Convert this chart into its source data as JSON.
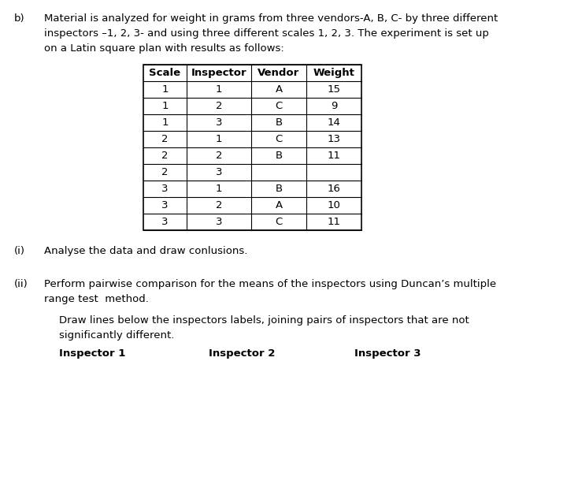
{
  "title_prefix": "b)",
  "title_lines": [
    "Material is analyzed for weight in grams from three vendors-A, B, C- by three different",
    "inspectors –1, 2, 3- and using three different scales 1, 2, 3. The experiment is set up",
    "on a Latin square plan with results as follows:"
  ],
  "table_headers": [
    "Scale",
    "Inspector",
    "Vendor",
    "Weight"
  ],
  "table_rows": [
    [
      "1",
      "1",
      "A",
      "15"
    ],
    [
      "1",
      "2",
      "C",
      "9"
    ],
    [
      "1",
      "3",
      "B",
      "14"
    ],
    [
      "2",
      "1",
      "C",
      "13"
    ],
    [
      "2",
      "2",
      "B",
      "11"
    ],
    [
      "2",
      "3",
      "",
      ""
    ],
    [
      "3",
      "1",
      "B",
      "16"
    ],
    [
      "3",
      "2",
      "A",
      "10"
    ],
    [
      "3",
      "3",
      "C",
      "11"
    ]
  ],
  "item_i_label": "(i)",
  "item_i_text": "Analyse the data and draw conlusions.",
  "item_ii_label": "(ii)",
  "item_ii_line1": "Perform pairwise comparison for the means of the inspectors using Duncan’s multiple",
  "item_ii_line2": "range test  method.",
  "draw_line1": "Draw lines below the inspectors labels, joining pairs of inspectors that are not",
  "draw_line2": "significantly different.",
  "inspector_labels": [
    "Inspector 1",
    "Inspector 2",
    "Inspector 3"
  ],
  "background_color": "#ffffff",
  "text_color": "#000000",
  "font_size": 9.5
}
